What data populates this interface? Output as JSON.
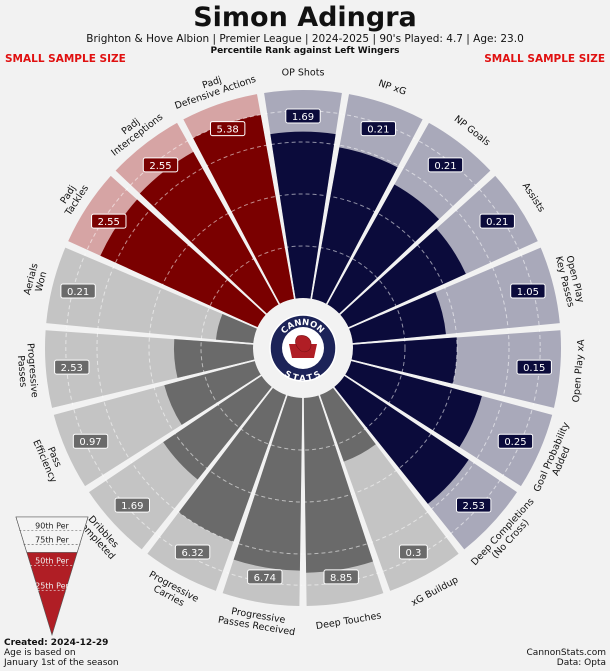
{
  "header": {
    "title": "Simon Adingra",
    "subtitle": "Brighton & Hove Albion  | Premier League | 2024-2025 | 90's Played: 4.7 | Age: 23.0",
    "subsubtitle": "Percentile Rank against Left Wingers",
    "sample_warning": "SMALL SAMPLE SIZE"
  },
  "logo": {
    "top_text": "CANNON",
    "bottom_text": "STATS"
  },
  "legend": {
    "labels": [
      "90th Per",
      "75th Per",
      "50th Per",
      "25th Per"
    ]
  },
  "footer": {
    "created_label": "Created: 2024-12-29",
    "age_note_1": "Age is based on",
    "age_note_2": "January 1st of the season",
    "site": "CannonStats.com",
    "source": "Data: Opta"
  },
  "colors": {
    "background": "#f2f2f2",
    "defending": "#7a0000",
    "defending_bg": "#d6a4a4",
    "possession": "#6a6a6a",
    "possession_bg": "#c4c4c4",
    "attacking": "#0b0b3b",
    "attacking_bg": "#a9a9ba",
    "logo_ring": "#1c2358",
    "logo_red": "#b01e25"
  },
  "chart_data": {
    "type": "pizza",
    "min": 0,
    "max": 100,
    "reference_percentiles": [
      25,
      50,
      75,
      90
    ],
    "slices": [
      {
        "label": "OP Shots",
        "value": "1.69",
        "percentile": 80,
        "group": "attacking"
      },
      {
        "label": "NP xG",
        "value": "0.21",
        "percentile": 74,
        "group": "attacking"
      },
      {
        "label": "NP Goals",
        "value": "0.21",
        "percentile": 66,
        "group": "attacking"
      },
      {
        "label": "Assists",
        "value": "0.21",
        "percentile": 62,
        "group": "attacking"
      },
      {
        "label": "Open Play Key Passes",
        "value": "1.05",
        "percentile": 45,
        "group": "attacking"
      },
      {
        "label": "Open Play xA",
        "value": "0.15",
        "percentile": 50,
        "group": "attacking"
      },
      {
        "label": "Goal Probability Added",
        "value": "0.25",
        "percentile": 65,
        "group": "attacking"
      },
      {
        "label": "Deep Completions (No Cross)",
        "value": "2.53",
        "percentile": 72,
        "group": "attacking"
      },
      {
        "label": "xG Buildup",
        "value": "0.3",
        "percentile": 34,
        "group": "possession"
      },
      {
        "label": "Deep Touches",
        "value": "8.85",
        "percentile": 84,
        "group": "possession"
      },
      {
        "label": "Progressive Passes Received",
        "value": "6.74",
        "percentile": 83,
        "group": "possession"
      },
      {
        "label": "Progressive Carries",
        "value": "6.32",
        "percentile": 75,
        "group": "possession"
      },
      {
        "label": "Dribbles Completed",
        "value": "1.69",
        "percentile": 57,
        "group": "possession"
      },
      {
        "label": "Pass Efficiency",
        "value": "0.97",
        "percentile": 45,
        "group": "possession"
      },
      {
        "label": "Progressive Passes",
        "value": "2.53",
        "percentile": 38,
        "group": "possession"
      },
      {
        "label": "Aerials Won",
        "value": "0.21",
        "percentile": 18,
        "group": "possession"
      },
      {
        "label": "Padj Tackles",
        "value": "2.55",
        "percentile": 83,
        "group": "defending"
      },
      {
        "label": "Padj Interceptions",
        "value": "2.55",
        "percentile": 84,
        "group": "defending"
      },
      {
        "label": "Padj Defensive Actions",
        "value": "5.38",
        "percentile": 90,
        "group": "defending"
      }
    ]
  }
}
